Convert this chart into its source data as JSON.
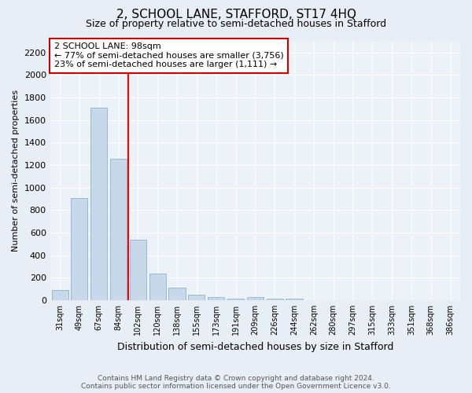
{
  "title": "2, SCHOOL LANE, STAFFORD, ST17 4HQ",
  "subtitle": "Size of property relative to semi-detached houses in Stafford",
  "xlabel": "Distribution of semi-detached houses by size in Stafford",
  "ylabel": "Number of semi-detached properties",
  "footer_line1": "Contains HM Land Registry data © Crown copyright and database right 2024.",
  "footer_line2": "Contains public sector information licensed under the Open Government Licence v3.0.",
  "annotation_line1": "2 SCHOOL LANE: 98sqm",
  "annotation_line2": "← 77% of semi-detached houses are smaller (3,756)",
  "annotation_line3": "23% of semi-detached houses are larger (1,111) →",
  "bar_color": "#c8d8eb",
  "bar_edge_color": "#8ab4d0",
  "vline_color": "red",
  "categories": [
    "31sqm",
    "49sqm",
    "67sqm",
    "84sqm",
    "102sqm",
    "120sqm",
    "138sqm",
    "155sqm",
    "173sqm",
    "191sqm",
    "209sqm",
    "226sqm",
    "244sqm",
    "262sqm",
    "280sqm",
    "297sqm",
    "315sqm",
    "333sqm",
    "351sqm",
    "368sqm",
    "386sqm"
  ],
  "values": [
    93,
    910,
    1710,
    1255,
    540,
    235,
    108,
    50,
    28,
    10,
    25,
    10,
    12,
    0,
    0,
    0,
    0,
    0,
    0,
    0,
    0
  ],
  "ylim": [
    0,
    2300
  ],
  "yticks": [
    0,
    200,
    400,
    600,
    800,
    1000,
    1200,
    1400,
    1600,
    1800,
    2000,
    2200
  ],
  "fig_bg_color": "#e8eef5",
  "plot_bg_color": "#edf2f8",
  "grid_color": "#ffffff",
  "annotation_bg": "#ffffff",
  "annotation_edge": "#cc0000",
  "title_fontsize": 11,
  "subtitle_fontsize": 9,
  "ylabel_fontsize": 8,
  "xlabel_fontsize": 9,
  "tick_fontsize": 7,
  "footer_fontsize": 6.5,
  "annotation_fontsize": 8
}
